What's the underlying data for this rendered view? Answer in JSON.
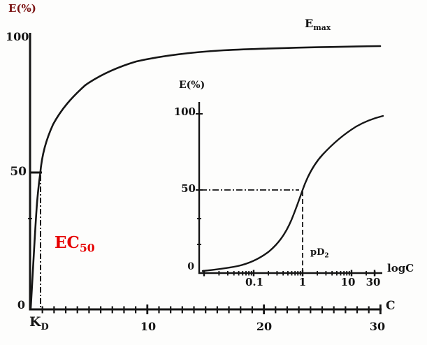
{
  "figure": {
    "colors": {
      "ink": "#151515",
      "ec50_red": "#e60000",
      "e_label_red": "#7a1212"
    },
    "main_chart": {
      "y_axis_label": "E(%)",
      "x_axis_label": "C",
      "y_ticks": [
        "100",
        "50",
        "0"
      ],
      "x_ticks": [
        "10",
        "20",
        "30"
      ],
      "emax_label": {
        "base": "E",
        "sub": "max"
      },
      "ec50_label": {
        "base": "EC",
        "sub": "50"
      },
      "kd_label": {
        "base": "K",
        "sub": "D"
      }
    },
    "inset_chart": {
      "y_axis_label": "E(%)",
      "x_axis_label": "logC",
      "y_ticks": [
        "100",
        "50",
        "0"
      ],
      "x_ticks": [
        "0.1",
        "1",
        "10",
        "30"
      ],
      "pd2_label": {
        "base": "pD",
        "sub": "2"
      }
    }
  },
  "chart_data": [
    {
      "type": "line",
      "title": "Concentration-effect curve (arithmetic scale)",
      "xlabel": "C",
      "ylabel": "E(%)",
      "x_scale": "linear",
      "xlim": [
        0,
        30
      ],
      "ylim": [
        0,
        100
      ],
      "x_tick_values": [
        10,
        20,
        30
      ],
      "y_tick_values": [
        0,
        50,
        100
      ],
      "x": [
        0,
        0.25,
        0.5,
        1,
        2,
        3,
        5,
        7,
        10,
        15,
        20,
        25,
        30
      ],
      "y": [
        0,
        20,
        33,
        50,
        67,
        75,
        83,
        87,
        90,
        93,
        94,
        95,
        96
      ],
      "grid": false,
      "legend": "none",
      "annotations": [
        "Emax plateau at about 96% effect",
        "EC50: dash-dot vertical guide at C about 1 where E = 50%",
        "KD marked on the C axis at the EC50 position",
        "short horizontal guide bar at E = 50"
      ]
    },
    {
      "type": "line",
      "title": "Concentration-effect curve (log scale, sigmoid)",
      "xlabel": "logC",
      "ylabel": "E(%)",
      "x_scale": "log",
      "xlim": [
        0.01,
        30
      ],
      "ylim": [
        0,
        100
      ],
      "x_tick_values": [
        0.1,
        1,
        10,
        30
      ],
      "y_tick_values": [
        0,
        50,
        100
      ],
      "x": [
        0.01,
        0.03,
        0.1,
        0.2,
        0.3,
        0.5,
        1,
        2,
        3,
        5,
        10,
        30
      ],
      "y": [
        1,
        3,
        8,
        14,
        20,
        33,
        50,
        67,
        75,
        83,
        91,
        97
      ],
      "grid": false,
      "legend": "none",
      "annotations": [
        "pD2 marked at C = 1 (50% effect)",
        "dash-dot horizontal guide from E = 50 to curve, dashed vertical drop to axis"
      ]
    }
  ]
}
